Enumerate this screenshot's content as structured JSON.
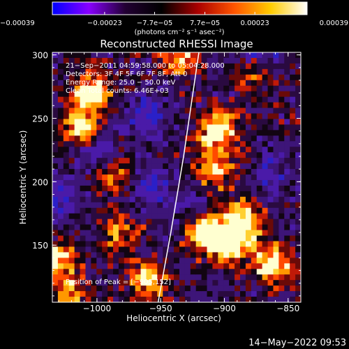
{
  "chart_data": {
    "type": "heatmap",
    "title": "Reconstructed RHESSI Image",
    "xlabel": "Heliocentric X (arcsec)",
    "ylabel": "Heliocentric Y (arcsec)",
    "xlim": [
      -1035,
      -840
    ],
    "ylim": [
      105,
      302
    ],
    "x_ticks": [
      {
        "value": -1000,
        "label": "−1000"
      },
      {
        "value": -950,
        "label": "−950"
      },
      {
        "value": -900,
        "label": "−900"
      },
      {
        "value": -850,
        "label": "−850"
      }
    ],
    "y_ticks": [
      {
        "value": 150,
        "label": "150"
      },
      {
        "value": 200,
        "label": "200"
      },
      {
        "value": 250,
        "label": "250"
      },
      {
        "value": 300,
        "label": "300"
      }
    ],
    "colorbar": {
      "range": [
        -0.00039,
        0.00039
      ],
      "ticks": [
        {
          "value": -0.00039,
          "label": "−0.00039"
        },
        {
          "value": -0.00023,
          "label": "−0.00023"
        },
        {
          "value": -7.7e-05,
          "label": "−7.7e−05"
        },
        {
          "value": 7.7e-05,
          "label": "7.7e−05"
        },
        {
          "value": 0.00023,
          "label": "0.00023"
        },
        {
          "value": 0.00039,
          "label": "0.00039"
        }
      ],
      "units": "(photons cm⁻² s⁻¹ asec⁻²)",
      "colors": [
        "#0000ff",
        "#8800ff",
        "#220033",
        "#000000",
        "#aa0000",
        "#ff5500",
        "#ffcc00",
        "#ffffff"
      ]
    },
    "annotations": [
      "21−Sep−2011 04:59:58.000 to 05:04:28.000",
      "Detectors: 3F 4F 5F 6F 7F 8F, Att 0",
      "Energy Range: 25.0 − 50.0 keV",
      "Clean     Total counts: 6.46E+03"
    ],
    "peak_label": "Position of Peak = [−905,152]",
    "limb_curve": [
      [
        -952,
        105
      ],
      [
        -942,
        160
      ],
      [
        -932,
        220
      ],
      [
        -920,
        302
      ]
    ],
    "bright_sources": [
      {
        "x": -1005,
        "y": 270,
        "level": 0.9
      },
      {
        "x": -1012,
        "y": 242,
        "level": 0.85
      },
      {
        "x": -985,
        "y": 205,
        "level": 0.6
      },
      {
        "x": -983,
        "y": 160,
        "level": 0.55
      },
      {
        "x": -960,
        "y": 122,
        "level": 0.7
      },
      {
        "x": -935,
        "y": 298,
        "level": 0.6
      },
      {
        "x": -905,
        "y": 240,
        "level": 0.85
      },
      {
        "x": -908,
        "y": 210,
        "level": 0.7
      },
      {
        "x": -915,
        "y": 160,
        "level": 0.95
      },
      {
        "x": -895,
        "y": 150,
        "level": 1.0
      },
      {
        "x": -885,
        "y": 170,
        "level": 0.9
      },
      {
        "x": -862,
        "y": 135,
        "level": 0.85
      },
      {
        "x": -875,
        "y": 285,
        "level": 0.5
      },
      {
        "x": -1030,
        "y": 140,
        "level": 0.7
      },
      {
        "x": -1020,
        "y": 110,
        "level": 0.6
      }
    ],
    "negative_sources": [
      {
        "x": -1000,
        "y": 225,
        "level": 0.6
      },
      {
        "x": -960,
        "y": 252,
        "level": 0.65
      },
      {
        "x": -962,
        "y": 200,
        "level": 0.55
      },
      {
        "x": -1030,
        "y": 190,
        "level": 0.55
      },
      {
        "x": -870,
        "y": 300,
        "level": 0.55
      },
      {
        "x": -860,
        "y": 205,
        "level": 0.45
      },
      {
        "x": -930,
        "y": 185,
        "level": 0.4
      }
    ]
  },
  "timestamp": "14−May−2022 09:53"
}
